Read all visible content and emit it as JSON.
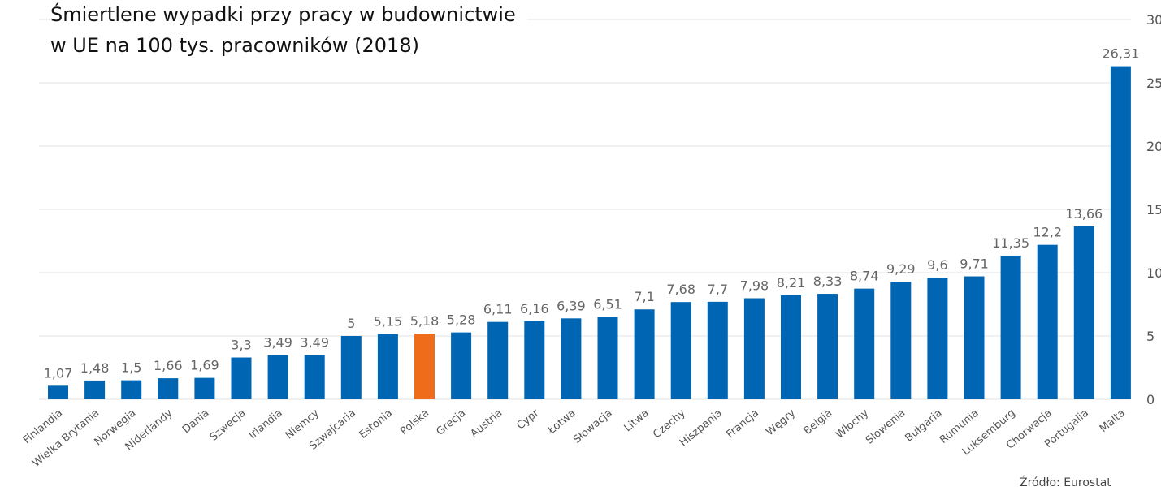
{
  "chart_data": {
    "type": "bar",
    "title_lines": [
      "Śmiertlene wypadki przy pracy w budownictwie",
      "w UE na 100 tys. pracowników (2018)"
    ],
    "categories": [
      "Finlandia",
      "Wielka Brytania",
      "Norwegia",
      "Niderlandy",
      "Dania",
      "Szwecja",
      "Irlandia",
      "Niemcy",
      "Szwajcaria",
      "Estonia",
      "Polska",
      "Grecja",
      "Austria",
      "Cypr",
      "Łotwa",
      "Słowacja",
      "Litwa",
      "Czechy",
      "Hiszpania",
      "Francja",
      "Węgry",
      "Belgia",
      "Włochy",
      "Słowenia",
      "Bułgaria",
      "Rumunia",
      "Luksemburg",
      "Chorwacja",
      "Portugalia",
      "Malta"
    ],
    "values": [
      1.07,
      1.48,
      1.5,
      1.66,
      1.69,
      3.3,
      3.49,
      3.49,
      5,
      5.15,
      5.18,
      5.28,
      6.11,
      6.16,
      6.39,
      6.51,
      7.1,
      7.68,
      7.7,
      7.98,
      8.21,
      8.33,
      8.74,
      9.29,
      9.6,
      9.71,
      11.35,
      12.2,
      13.66,
      26.31
    ],
    "value_labels": [
      "1,07",
      "1,48",
      "1,5",
      "1,66",
      "1,69",
      "3,3",
      "3,49",
      "3,49",
      "5",
      "5,15",
      "5,18",
      "5,28",
      "6,11",
      "6,16",
      "6,39",
      "6,51",
      "7,1",
      "7,68",
      "7,7",
      "7,98",
      "8,21",
      "8,33",
      "8,74",
      "9,29",
      "9,6",
      "9,71",
      "11,35",
      "12,2",
      "13,66",
      "26,31"
    ],
    "highlight_category": "Polska",
    "yticks": [
      "0",
      "5",
      "10",
      "15",
      "20",
      "25",
      "30"
    ],
    "ylim": [
      0,
      30
    ],
    "y_axis_side": "right",
    "grid": true,
    "legend": "none",
    "colors": {
      "bar": "#0066b3",
      "highlight": "#ef6c1b",
      "grid": "#e3e3e3",
      "label": "#666666",
      "tick": "#555555"
    }
  },
  "source_text": "Źródło: Eurostat"
}
